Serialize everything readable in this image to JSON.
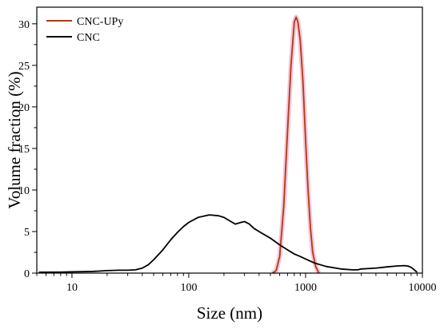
{
  "chart_data": {
    "type": "line",
    "xlabel": "Size (nm)",
    "ylabel": "Volume fraction (%)",
    "x_scale": "log",
    "xlim": [
      5,
      10000
    ],
    "ylim": [
      0,
      32
    ],
    "x_ticks": [
      {
        "value": 10,
        "label": "10"
      },
      {
        "value": 100,
        "label": "100"
      },
      {
        "value": 1000,
        "label": "1000"
      },
      {
        "value": 10000,
        "label": "10000"
      }
    ],
    "y_ticks": [
      {
        "value": 0,
        "label": "0"
      },
      {
        "value": 5,
        "label": "5"
      },
      {
        "value": 10,
        "label": "10"
      },
      {
        "value": 15,
        "label": "15"
      },
      {
        "value": 20,
        "label": "20"
      },
      {
        "value": 25,
        "label": "25"
      },
      {
        "value": 30,
        "label": "30"
      }
    ],
    "legend_position": "top-left",
    "grid": false,
    "series": [
      {
        "name": "CNC-UPy",
        "color": "#b03a1e",
        "glow_color": "#f4b8cc",
        "points": [
          [
            520,
            0
          ],
          [
            560,
            0.3
          ],
          [
            600,
            2
          ],
          [
            650,
            8
          ],
          [
            700,
            17
          ],
          [
            750,
            25
          ],
          [
            800,
            30.2
          ],
          [
            830,
            30.8
          ],
          [
            860,
            30.2
          ],
          [
            900,
            28
          ],
          [
            950,
            23
          ],
          [
            1000,
            16
          ],
          [
            1050,
            10
          ],
          [
            1100,
            5.5
          ],
          [
            1150,
            2.5
          ],
          [
            1220,
            0.8
          ],
          [
            1300,
            0
          ]
        ]
      },
      {
        "name": "CNC",
        "color": "#000000",
        "points": [
          [
            5.2,
            0.1
          ],
          [
            8,
            0.12
          ],
          [
            10,
            0.15
          ],
          [
            15,
            0.2
          ],
          [
            20,
            0.3
          ],
          [
            25,
            0.35
          ],
          [
            30,
            0.35
          ],
          [
            35,
            0.4
          ],
          [
            40,
            0.6
          ],
          [
            45,
            1.0
          ],
          [
            50,
            1.6
          ],
          [
            60,
            2.8
          ],
          [
            70,
            4.0
          ],
          [
            80,
            4.9
          ],
          [
            90,
            5.6
          ],
          [
            100,
            6.1
          ],
          [
            120,
            6.7
          ],
          [
            150,
            7.0
          ],
          [
            180,
            6.9
          ],
          [
            200,
            6.7
          ],
          [
            230,
            6.2
          ],
          [
            250,
            5.9
          ],
          [
            280,
            6.1
          ],
          [
            300,
            6.2
          ],
          [
            330,
            5.9
          ],
          [
            360,
            5.4
          ],
          [
            400,
            5.0
          ],
          [
            500,
            4.2
          ],
          [
            600,
            3.4
          ],
          [
            700,
            2.8
          ],
          [
            800,
            2.3
          ],
          [
            900,
            2.0
          ],
          [
            1000,
            1.7
          ],
          [
            1200,
            1.2
          ],
          [
            1500,
            0.8
          ],
          [
            2000,
            0.5
          ],
          [
            2500,
            0.4
          ],
          [
            2800,
            0.4
          ],
          [
            3000,
            0.5
          ],
          [
            3500,
            0.55
          ],
          [
            4000,
            0.6
          ],
          [
            5000,
            0.75
          ],
          [
            6000,
            0.85
          ],
          [
            7000,
            0.9
          ],
          [
            7500,
            0.85
          ],
          [
            8000,
            0.7
          ],
          [
            8500,
            0.4
          ],
          [
            9000,
            0.1
          ]
        ]
      }
    ]
  }
}
